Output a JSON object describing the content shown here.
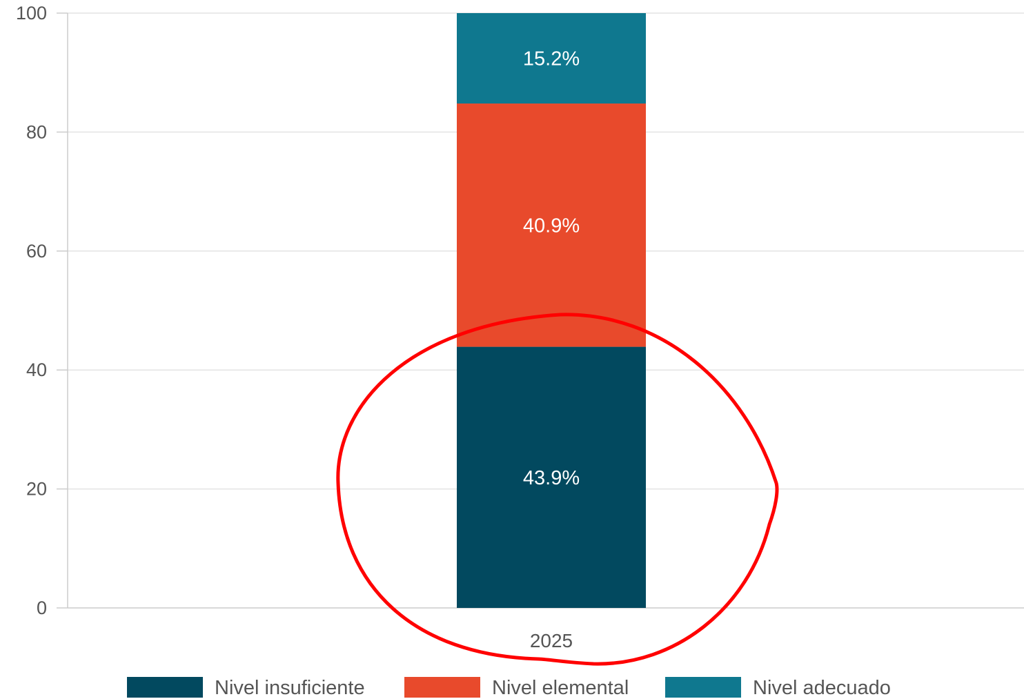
{
  "chart_data": {
    "type": "bar",
    "stacked": true,
    "categories": [
      "2025"
    ],
    "series": [
      {
        "name": "Nivel insuficiente",
        "values": [
          43.9
        ],
        "color": "#02495f",
        "label": "43.9%"
      },
      {
        "name": "Nivel elemental",
        "values": [
          40.9
        ],
        "color": "#e84a2c",
        "label": "40.9%"
      },
      {
        "name": "Nivel adecuado",
        "values": [
          15.2
        ],
        "color": "#0f788f",
        "label": "15.2%"
      }
    ],
    "ylim": [
      0,
      100
    ],
    "yticks": [
      "0",
      "20",
      "40",
      "60",
      "80",
      "100"
    ],
    "grid": true,
    "legend": "bottom",
    "annotation": {
      "shape": "ellipse",
      "color": "#ff0000",
      "around": "Nivel insuficiente"
    }
  }
}
